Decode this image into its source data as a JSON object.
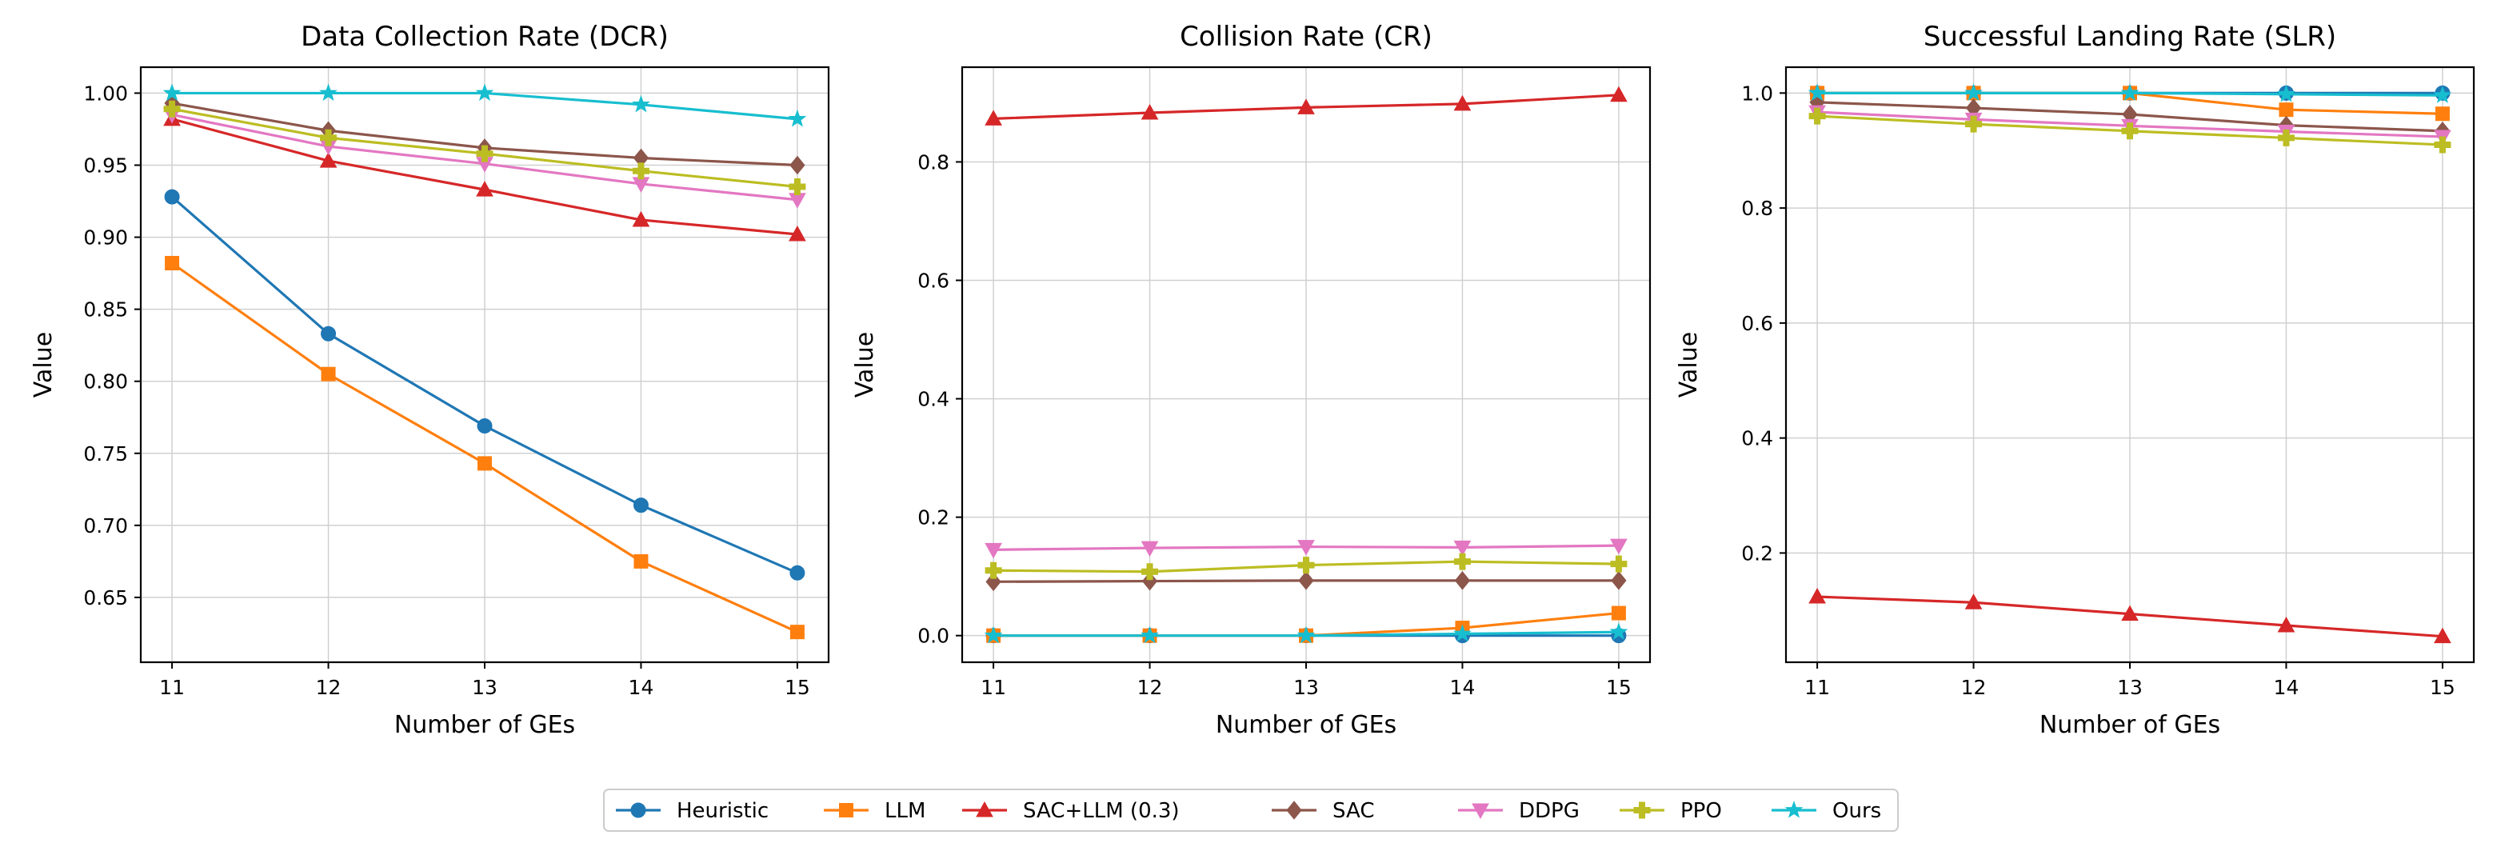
{
  "figure": {
    "legend": [
      {
        "name": "Heuristic",
        "color": "#1f77b4",
        "marker": "circle"
      },
      {
        "name": "LLM",
        "color": "#ff7f0e",
        "marker": "square"
      },
      {
        "name": "SAC+LLM (0.3)",
        "color": "#d62728",
        "marker": "triangle-up"
      },
      {
        "name": "SAC",
        "color": "#8c564b",
        "marker": "diamond"
      },
      {
        "name": "DDPG",
        "color": "#e377c2",
        "marker": "triangle-down"
      },
      {
        "name": "PPO",
        "color": "#bcbd22",
        "marker": "plus"
      },
      {
        "name": "Ours",
        "color": "#17becf",
        "marker": "star"
      }
    ]
  },
  "chart_data": [
    {
      "type": "line",
      "title": "Data Collection Rate (DCR)",
      "xlabel": "Number of GEs",
      "ylabel": "Value",
      "x": [
        11,
        12,
        13,
        14,
        15
      ],
      "xlim": [
        10.8,
        15.2
      ],
      "ylim": [
        0.605,
        1.018
      ],
      "yticks": [
        "0.65",
        "0.70",
        "0.75",
        "0.80",
        "0.85",
        "0.90",
        "0.95",
        "1.00"
      ],
      "grid": true,
      "series": [
        {
          "name": "Heuristic",
          "values": [
            0.928,
            0.833,
            0.769,
            0.714,
            0.667
          ]
        },
        {
          "name": "LLM",
          "values": [
            0.882,
            0.805,
            0.743,
            0.675,
            0.626
          ]
        },
        {
          "name": "SAC+LLM (0.3)",
          "values": [
            0.982,
            0.953,
            0.933,
            0.912,
            0.902
          ]
        },
        {
          "name": "SAC",
          "values": [
            0.993,
            0.974,
            0.962,
            0.955,
            0.95
          ]
        },
        {
          "name": "DDPG",
          "values": [
            0.985,
            0.963,
            0.951,
            0.937,
            0.926
          ]
        },
        {
          "name": "PPO",
          "values": [
            0.989,
            0.969,
            0.958,
            0.946,
            0.935
          ]
        },
        {
          "name": "Ours",
          "values": [
            1.0,
            1.0,
            1.0,
            0.992,
            0.982
          ]
        }
      ]
    },
    {
      "type": "line",
      "title": "Collision Rate (CR)",
      "xlabel": "Number of GEs",
      "ylabel": "Value",
      "x": [
        11,
        12,
        13,
        14,
        15
      ],
      "xlim": [
        10.8,
        15.2
      ],
      "ylim": [
        -0.045,
        0.96
      ],
      "yticks": [
        "0.0",
        "0.2",
        "0.4",
        "0.6",
        "0.8"
      ],
      "grid": true,
      "series": [
        {
          "name": "Heuristic",
          "values": [
            0.0,
            0.0,
            0.0,
            0.0,
            0.0
          ]
        },
        {
          "name": "LLM",
          "values": [
            0.0,
            0.0,
            0.0,
            0.013,
            0.038
          ]
        },
        {
          "name": "SAC+LLM (0.3)",
          "values": [
            0.873,
            0.883,
            0.892,
            0.898,
            0.913
          ]
        },
        {
          "name": "SAC",
          "values": [
            0.091,
            0.092,
            0.093,
            0.093,
            0.093
          ]
        },
        {
          "name": "DDPG",
          "values": [
            0.145,
            0.148,
            0.15,
            0.149,
            0.152
          ]
        },
        {
          "name": "PPO",
          "values": [
            0.11,
            0.108,
            0.119,
            0.125,
            0.121
          ]
        },
        {
          "name": "Ours",
          "values": [
            0.0,
            0.0,
            0.0,
            0.003,
            0.006
          ]
        }
      ]
    },
    {
      "type": "line",
      "title": "Successful Landing Rate (SLR)",
      "xlabel": "Number of GEs",
      "ylabel": "Value",
      "x": [
        11,
        12,
        13,
        14,
        15
      ],
      "xlim": [
        10.8,
        15.2
      ],
      "ylim": [
        0.01,
        1.045
      ],
      "yticks": [
        "0.2",
        "0.4",
        "0.6",
        "0.8",
        "1.0"
      ],
      "grid": true,
      "series": [
        {
          "name": "Heuristic",
          "values": [
            1.0,
            1.0,
            1.0,
            1.0,
            1.0
          ]
        },
        {
          "name": "LLM",
          "values": [
            1.0,
            1.0,
            1.0,
            0.971,
            0.964
          ]
        },
        {
          "name": "SAC+LLM (0.3)",
          "values": [
            0.124,
            0.114,
            0.094,
            0.074,
            0.055
          ]
        },
        {
          "name": "SAC",
          "values": [
            0.984,
            0.974,
            0.963,
            0.944,
            0.934
          ]
        },
        {
          "name": "DDPG",
          "values": [
            0.967,
            0.954,
            0.943,
            0.933,
            0.924
          ]
        },
        {
          "name": "PPO",
          "values": [
            0.96,
            0.946,
            0.934,
            0.922,
            0.91
          ]
        },
        {
          "name": "Ours",
          "values": [
            1.0,
            1.0,
            1.0,
            0.998,
            0.996
          ]
        }
      ]
    }
  ]
}
